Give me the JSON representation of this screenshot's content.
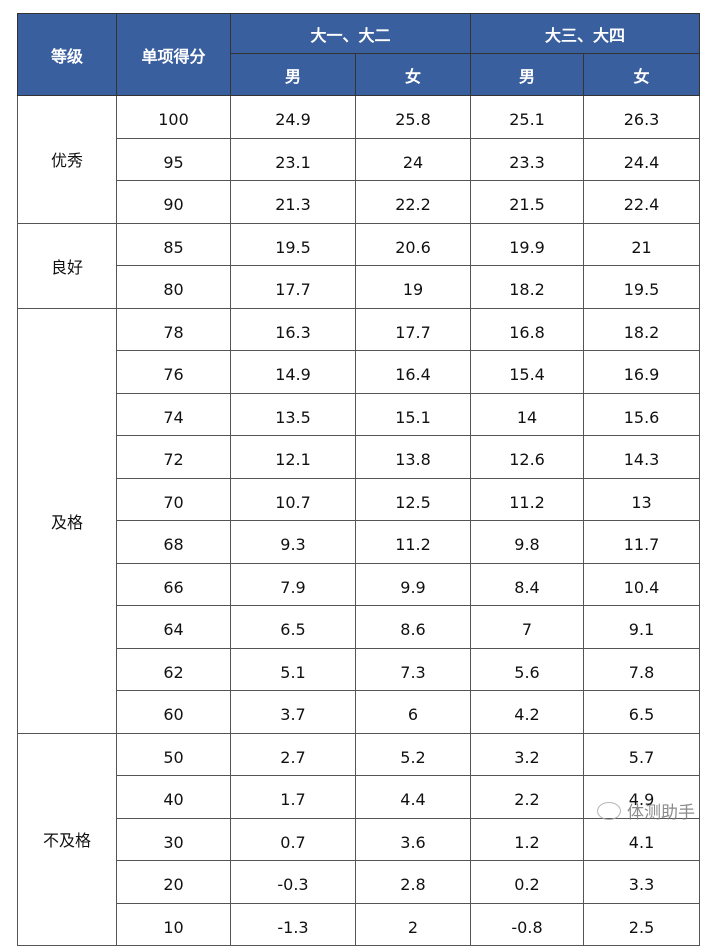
{
  "header": {
    "grade": "等级",
    "score": "单项得分",
    "group1": "大一、大二",
    "group2": "大三、大四",
    "male": "男",
    "female": "女"
  },
  "colors": {
    "header_bg": "#3a5f9e",
    "header_text": "#ffffff"
  },
  "groups": [
    {
      "grade": "优秀",
      "rows": [
        {
          "score": "100",
          "y12m": "24.9",
          "y12f": "25.8",
          "y34m": "25.1",
          "y34f": "26.3"
        },
        {
          "score": "95",
          "y12m": "23.1",
          "y12f": "24",
          "y34m": "23.3",
          "y34f": "24.4"
        },
        {
          "score": "90",
          "y12m": "21.3",
          "y12f": "22.2",
          "y34m": "21.5",
          "y34f": "22.4"
        }
      ]
    },
    {
      "grade": "良好",
      "rows": [
        {
          "score": "85",
          "y12m": "19.5",
          "y12f": "20.6",
          "y34m": "19.9",
          "y34f": "21"
        },
        {
          "score": "80",
          "y12m": "17.7",
          "y12f": "19",
          "y34m": "18.2",
          "y34f": "19.5"
        }
      ]
    },
    {
      "grade": "及格",
      "rows": [
        {
          "score": "78",
          "y12m": "16.3",
          "y12f": "17.7",
          "y34m": "16.8",
          "y34f": "18.2"
        },
        {
          "score": "76",
          "y12m": "14.9",
          "y12f": "16.4",
          "y34m": "15.4",
          "y34f": "16.9"
        },
        {
          "score": "74",
          "y12m": "13.5",
          "y12f": "15.1",
          "y34m": "14",
          "y34f": "15.6"
        },
        {
          "score": "72",
          "y12m": "12.1",
          "y12f": "13.8",
          "y34m": "12.6",
          "y34f": "14.3"
        },
        {
          "score": "70",
          "y12m": "10.7",
          "y12f": "12.5",
          "y34m": "11.2",
          "y34f": "13"
        },
        {
          "score": "68",
          "y12m": "9.3",
          "y12f": "11.2",
          "y34m": "9.8",
          "y34f": "11.7"
        },
        {
          "score": "66",
          "y12m": "7.9",
          "y12f": "9.9",
          "y34m": "8.4",
          "y34f": "10.4"
        },
        {
          "score": "64",
          "y12m": "6.5",
          "y12f": "8.6",
          "y34m": "7",
          "y34f": "9.1"
        },
        {
          "score": "62",
          "y12m": "5.1",
          "y12f": "7.3",
          "y34m": "5.6",
          "y34f": "7.8"
        },
        {
          "score": "60",
          "y12m": "3.7",
          "y12f": "6",
          "y34m": "4.2",
          "y34f": "6.5"
        }
      ]
    },
    {
      "grade": "不及格",
      "rows": [
        {
          "score": "50",
          "y12m": "2.7",
          "y12f": "5.2",
          "y34m": "3.2",
          "y34f": "5.7"
        },
        {
          "score": "40",
          "y12m": "1.7",
          "y12f": "4.4",
          "y34m": "2.2",
          "y34f": "4.9"
        },
        {
          "score": "30",
          "y12m": "0.7",
          "y12f": "3.6",
          "y34m": "1.2",
          "y34f": "4.1"
        },
        {
          "score": "20",
          "y12m": "-0.3",
          "y12f": "2.8",
          "y34m": "0.2",
          "y34f": "3.3"
        },
        {
          "score": "10",
          "y12m": "-1.3",
          "y12f": "2",
          "y34m": "-0.8",
          "y34f": "2.5"
        }
      ]
    }
  ],
  "watermark": "体测助手"
}
